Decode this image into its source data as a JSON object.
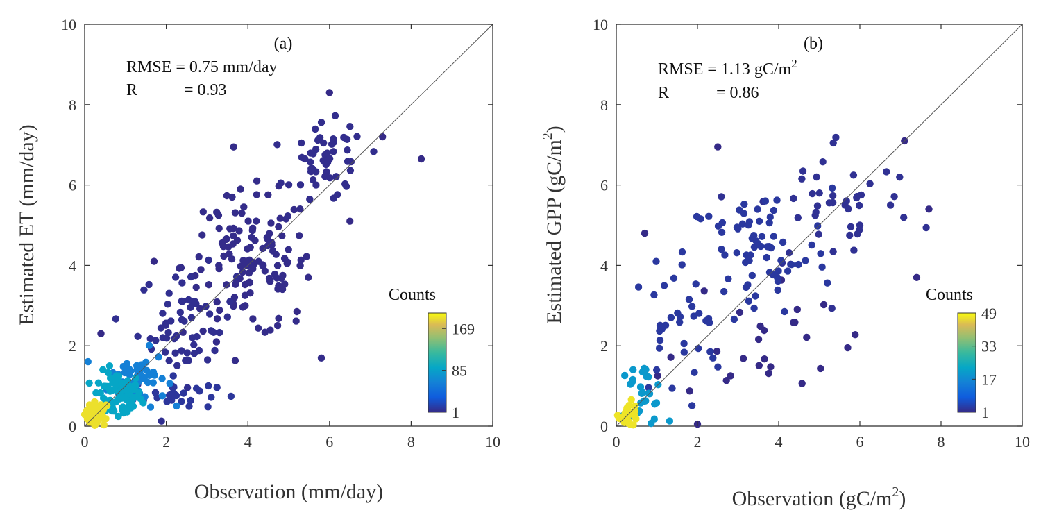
{
  "chart_data": [
    {
      "type": "scatter",
      "panel_label": "(a)",
      "xlabel": "Observation (mm/day)",
      "ylabel": "Estimated ET (mm/day)",
      "xlim": [
        0,
        10
      ],
      "ylim": [
        0,
        10
      ],
      "ticks": [
        0,
        2,
        4,
        6,
        8,
        10
      ],
      "tick_labels": [
        "0",
        "2",
        "4",
        "6",
        "8",
        "10"
      ],
      "stats": {
        "rmse_label": "RMSE = 0.75 mm/day",
        "r_label": "R",
        "r_value": "= 0.93"
      },
      "one_to_one_line": true,
      "colorbar": {
        "title": "Counts",
        "min": 1,
        "max": 200,
        "ticks": [
          1,
          85,
          169
        ],
        "tick_labels": [
          "1",
          "85",
          "169"
        ]
      },
      "clusters": [
        {
          "cx": 0.3,
          "cy": 0.3,
          "n": 60,
          "sx": 0.15,
          "sy": 0.15,
          "density": 190
        },
        {
          "cx": 0.8,
          "cy": 0.75,
          "n": 80,
          "sx": 0.3,
          "sy": 0.3,
          "density": 90
        },
        {
          "cx": 1.3,
          "cy": 1.2,
          "n": 60,
          "sx": 0.35,
          "sy": 0.35,
          "density": 60
        },
        {
          "cx": 2.2,
          "cy": 0.8,
          "n": 25,
          "sx": 0.5,
          "sy": 0.2,
          "density": 8
        },
        {
          "cx": 2.5,
          "cy": 2.5,
          "n": 60,
          "sx": 0.6,
          "sy": 0.7,
          "density": 4
        },
        {
          "cx": 4.0,
          "cy": 4.0,
          "n": 130,
          "sx": 0.8,
          "sy": 0.9,
          "density": 2
        },
        {
          "cx": 6.0,
          "cy": 6.5,
          "n": 55,
          "sx": 0.45,
          "sy": 0.5,
          "density": 3
        }
      ],
      "points": [
        [
          8.25,
          6.65
        ],
        [
          6.0,
          8.3
        ],
        [
          0.4,
          2.3
        ],
        [
          1.7,
          4.1
        ],
        [
          6.5,
          5.1
        ],
        [
          7.3,
          7.2
        ],
        [
          5.2,
          2.85
        ]
      ]
    },
    {
      "type": "scatter",
      "panel_label": "(b)",
      "xlabel": "Observation (gC/m",
      "xlabel_sup": "2",
      "xlabel_end": ")",
      "ylabel": "Estimated GPP (gC/m",
      "ylabel_sup": "2",
      "ylabel_end": ")",
      "xlim": [
        0,
        10
      ],
      "ylim": [
        0,
        10
      ],
      "ticks": [
        0,
        2,
        4,
        6,
        8,
        10
      ],
      "tick_labels": [
        "0",
        "2",
        "4",
        "6",
        "8",
        "10"
      ],
      "stats": {
        "rmse_label": "RMSE = 1.13 gC/m",
        "rmse_sup": "2",
        "r_label": "R",
        "r_value": "= 0.86"
      },
      "one_to_one_line": true,
      "colorbar": {
        "title": "Counts",
        "min": 1,
        "max": 49,
        "ticks": [
          1,
          17,
          33,
          49
        ],
        "tick_labels": [
          "1",
          "17",
          "33",
          "49"
        ]
      },
      "clusters": [
        {
          "cx": 0.3,
          "cy": 0.3,
          "n": 30,
          "sx": 0.12,
          "sy": 0.15,
          "density": 47
        },
        {
          "cx": 0.6,
          "cy": 0.8,
          "n": 35,
          "sx": 0.3,
          "sy": 0.4,
          "density": 20
        },
        {
          "cx": 1.5,
          "cy": 2.3,
          "n": 35,
          "sx": 0.6,
          "sy": 0.8,
          "density": 3
        },
        {
          "cx": 3.5,
          "cy": 4.3,
          "n": 70,
          "sx": 0.9,
          "sy": 0.8,
          "density": 3
        },
        {
          "cx": 5.5,
          "cy": 5.5,
          "n": 45,
          "sx": 1.0,
          "sy": 0.9,
          "density": 2
        },
        {
          "cx": 3.5,
          "cy": 2.2,
          "n": 25,
          "sx": 1.0,
          "sy": 0.8,
          "density": 1
        }
      ],
      "points": [
        [
          2.5,
          6.95
        ],
        [
          0.7,
          4.8
        ],
        [
          5.7,
          1.95
        ],
        [
          7.4,
          3.7
        ],
        [
          2.0,
          0.05
        ],
        [
          7.1,
          7.1
        ],
        [
          7.7,
          5.4
        ]
      ]
    }
  ]
}
